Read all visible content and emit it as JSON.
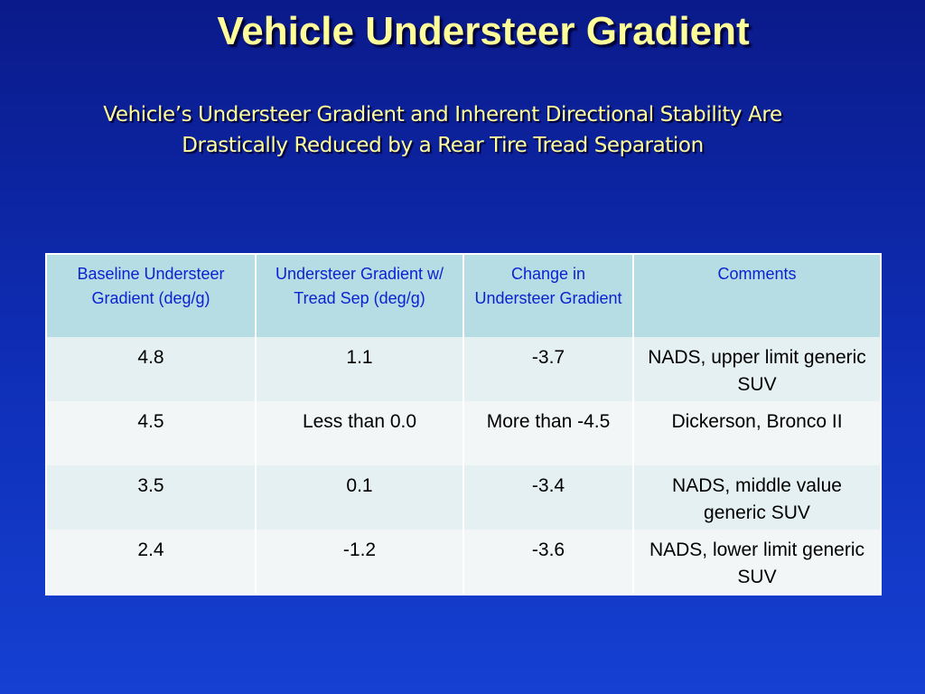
{
  "slide": {
    "title": "Vehicle Understeer Gradient",
    "subtitle_line1": "Vehicle’s Understeer Gradient and Inherent Directional Stability Are",
    "subtitle_line2": "Drastically Reduced by a Rear Tire Tread Separation"
  },
  "table": {
    "headers": [
      "Baseline Understeer Gradient (deg/g)",
      "Understeer Gradient w/ Tread Sep (deg/g)",
      "Change in Understeer Gradient",
      "Comments"
    ],
    "rows": [
      [
        "4.8",
        "1.1",
        "-3.7",
        "NADS, upper limit generic SUV"
      ],
      [
        "4.5",
        "Less than 0.0",
        "More than -4.5",
        "Dickerson, Bronco II"
      ],
      [
        "3.5",
        "0.1",
        "-3.4",
        "NADS, middle value generic SUV"
      ],
      [
        "2.4",
        "-1.2",
        "-3.6",
        "NADS, lower limit generic SUV"
      ]
    ]
  },
  "colors": {
    "background": "#0f2fb8",
    "title_text": "#ffff99",
    "header_fill": "#b6dde4",
    "header_text": "#0b22d0",
    "row_fill_alt_1": "#e4f0f1",
    "row_fill_alt_2": "#f2f6f6"
  }
}
